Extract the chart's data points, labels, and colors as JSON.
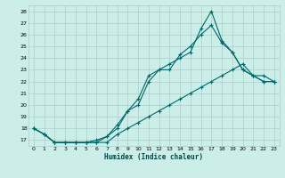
{
  "xlabel": "Humidex (Indice chaleur)",
  "background_color": "#cceee8",
  "grid_color": "#aacccc",
  "line_color": "#006868",
  "xlim": [
    -0.5,
    23.5
  ],
  "ylim": [
    16.5,
    28.5
  ],
  "yticks": [
    17,
    18,
    19,
    20,
    21,
    22,
    23,
    24,
    25,
    26,
    27,
    28
  ],
  "xticks": [
    0,
    1,
    2,
    3,
    4,
    5,
    6,
    7,
    8,
    9,
    10,
    11,
    12,
    13,
    14,
    15,
    16,
    17,
    18,
    19,
    20,
    21,
    22,
    23
  ],
  "line1_x": [
    0,
    1,
    2,
    3,
    4,
    5,
    6,
    7,
    8,
    9,
    10,
    11,
    12,
    13,
    14,
    15,
    16,
    17,
    18,
    19,
    20,
    21,
    22,
    23
  ],
  "line1_y": [
    18.0,
    17.5,
    16.8,
    16.8,
    16.8,
    16.8,
    16.8,
    17.3,
    18.0,
    19.5,
    20.5,
    22.5,
    23.0,
    23.5,
    24.0,
    24.5,
    26.5,
    28.0,
    25.5,
    24.5,
    23.0,
    22.5,
    22.0,
    22.0
  ],
  "line2_x": [
    0,
    1,
    2,
    3,
    4,
    5,
    6,
    7,
    8,
    9,
    10,
    11,
    12,
    13,
    14,
    15,
    16,
    17,
    18,
    19,
    20,
    21,
    22,
    23
  ],
  "line2_y": [
    18.0,
    17.5,
    16.8,
    16.8,
    16.8,
    16.8,
    17.0,
    17.3,
    18.3,
    19.5,
    20.0,
    22.0,
    23.0,
    23.0,
    24.3,
    25.0,
    26.0,
    26.8,
    25.3,
    24.5,
    23.0,
    22.5,
    22.5,
    22.0
  ],
  "line3_x": [
    0,
    1,
    2,
    3,
    4,
    5,
    6,
    7,
    8,
    9,
    10,
    11,
    12,
    13,
    14,
    15,
    16,
    17,
    18,
    19,
    20,
    21,
    22,
    23
  ],
  "line3_y": [
    18.0,
    17.5,
    16.8,
    16.8,
    16.8,
    16.8,
    16.8,
    16.8,
    17.5,
    18.0,
    18.5,
    19.0,
    19.5,
    20.0,
    20.5,
    21.0,
    21.5,
    22.0,
    22.5,
    23.0,
    23.5,
    22.5,
    22.0,
    22.0
  ]
}
